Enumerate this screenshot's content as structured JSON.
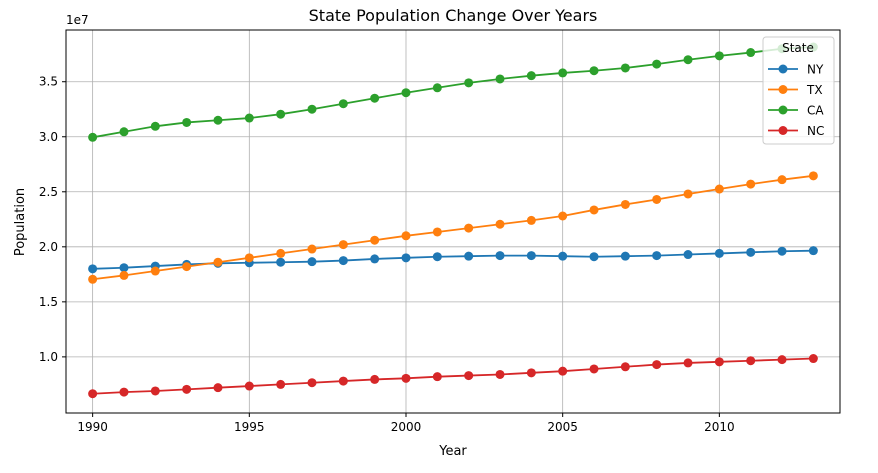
{
  "chart_data": {
    "type": "line",
    "title": "State Population Change Over Years",
    "xlabel": "Year",
    "ylabel": "Population",
    "y_scale_label": "1e7",
    "xlim": [
      1989.15,
      2013.85
    ],
    "ylim": [
      4.9,
      39.7
    ],
    "x_ticks": [
      1990,
      1995,
      2000,
      2005,
      2010
    ],
    "x_tick_labels": [
      "1990",
      "1995",
      "2000",
      "2005",
      "2010"
    ],
    "y_ticks": [
      10,
      15,
      20,
      25,
      30,
      35
    ],
    "y_tick_labels": [
      "1.0",
      "1.5",
      "2.0",
      "2.5",
      "3.0",
      "3.5"
    ],
    "grid": true,
    "legend_title": "State",
    "legend_position": "top-right",
    "x": [
      1990,
      1991,
      1992,
      1993,
      1994,
      1995,
      1996,
      1997,
      1998,
      1999,
      2000,
      2001,
      2002,
      2003,
      2004,
      2005,
      2006,
      2007,
      2008,
      2009,
      2010,
      2011,
      2012,
      2013
    ],
    "series": [
      {
        "name": "NY",
        "color": "#1f77b4",
        "values": [
          18.0,
          18.1,
          18.25,
          18.4,
          18.5,
          18.55,
          18.6,
          18.65,
          18.75,
          18.9,
          19.0,
          19.1,
          19.15,
          19.2,
          19.2,
          19.15,
          19.1,
          19.15,
          19.2,
          19.3,
          19.4,
          19.5,
          19.6,
          19.65
        ]
      },
      {
        "name": "TX",
        "color": "#ff7f0e",
        "values": [
          17.05,
          17.4,
          17.8,
          18.2,
          18.6,
          19.0,
          19.4,
          19.8,
          20.2,
          20.6,
          21.0,
          21.35,
          21.7,
          22.05,
          22.4,
          22.8,
          23.35,
          23.85,
          24.3,
          24.8,
          25.25,
          25.7,
          26.1,
          26.45
        ]
      },
      {
        "name": "CA",
        "color": "#2ca02c",
        "values": [
          29.95,
          30.45,
          30.95,
          31.3,
          31.5,
          31.7,
          32.05,
          32.5,
          33.0,
          33.5,
          34.0,
          34.45,
          34.9,
          35.25,
          35.55,
          35.8,
          36.0,
          36.25,
          36.6,
          37.0,
          37.35,
          37.65,
          38.0,
          38.15
        ]
      },
      {
        "name": "NC",
        "color": "#d62728",
        "values": [
          6.65,
          6.8,
          6.9,
          7.05,
          7.2,
          7.35,
          7.5,
          7.65,
          7.8,
          7.95,
          8.05,
          8.2,
          8.3,
          8.4,
          8.55,
          8.7,
          8.9,
          9.1,
          9.3,
          9.45,
          9.55,
          9.65,
          9.75,
          9.85
        ]
      }
    ]
  }
}
